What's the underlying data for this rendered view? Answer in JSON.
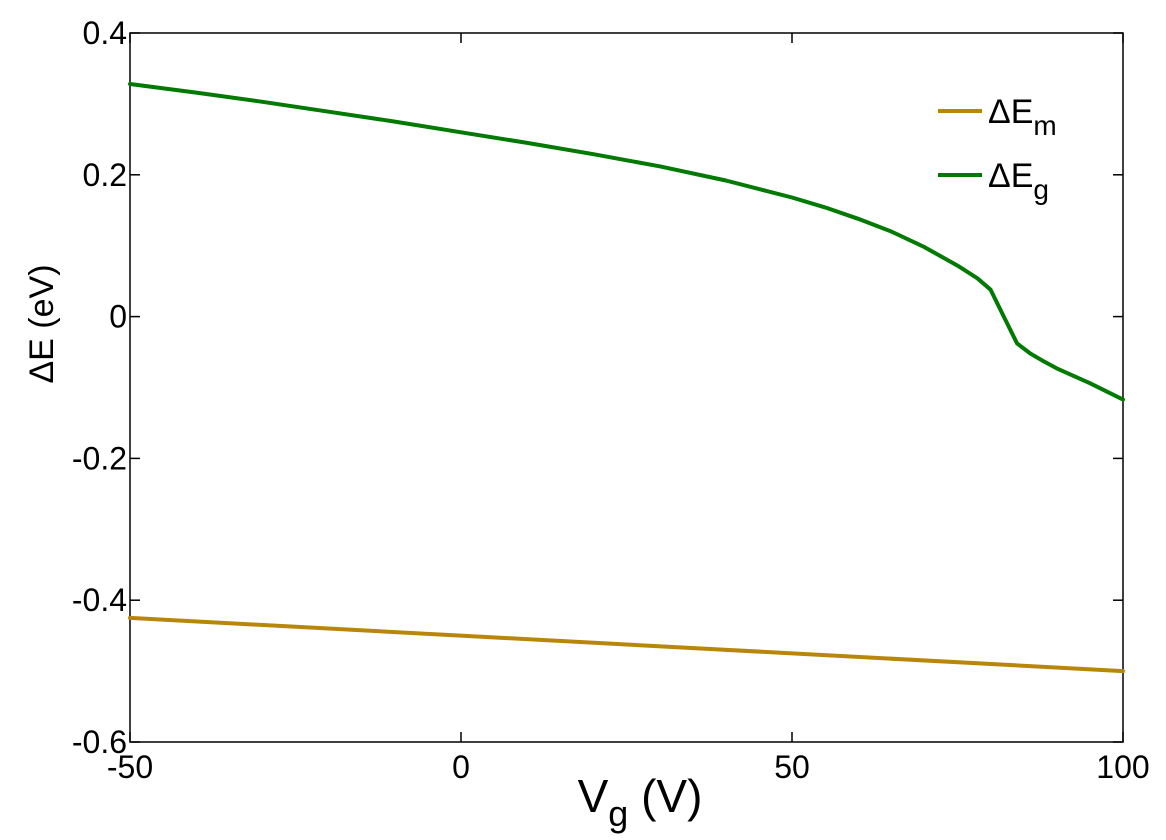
{
  "chart_data": {
    "type": "line",
    "xlabel": "V",
    "xlabel_sub": "g",
    "xlabel_unit": " (V)",
    "ylabel": "ΔE (eV)",
    "xlim": [
      -50,
      100
    ],
    "ylim": [
      -0.6,
      0.4
    ],
    "xticks": [
      -50,
      0,
      50,
      100
    ],
    "yticks": [
      -0.6,
      -0.4,
      -0.2,
      0,
      0.2,
      0.4
    ],
    "xtick_labels": [
      "-50",
      "0",
      "50",
      "100"
    ],
    "ytick_labels": [
      "-0.6",
      "-0.4",
      "-0.2",
      "0",
      "0.2",
      "0.4"
    ],
    "grid": false,
    "legend_position": "top-right",
    "series": [
      {
        "name": "ΔE",
        "name_sub": "m",
        "color": "#b8860b",
        "x": [
          -50,
          100
        ],
        "y": [
          -0.425,
          -0.5
        ]
      },
      {
        "name": "ΔE",
        "name_sub": "g",
        "color": "#007a00",
        "x": [
          -50,
          -40,
          -30,
          -20,
          -10,
          0,
          10,
          20,
          30,
          40,
          50,
          55,
          60,
          65,
          70,
          75,
          78,
          80,
          82,
          84,
          86,
          88,
          90,
          95,
          100
        ],
        "y": [
          0.328,
          0.316,
          0.303,
          0.289,
          0.275,
          0.26,
          0.245,
          0.229,
          0.212,
          0.192,
          0.168,
          0.154,
          0.138,
          0.12,
          0.098,
          0.072,
          0.054,
          0.038,
          0.0,
          -0.038,
          -0.052,
          -0.063,
          -0.073,
          -0.094,
          -0.117
        ]
      }
    ]
  }
}
